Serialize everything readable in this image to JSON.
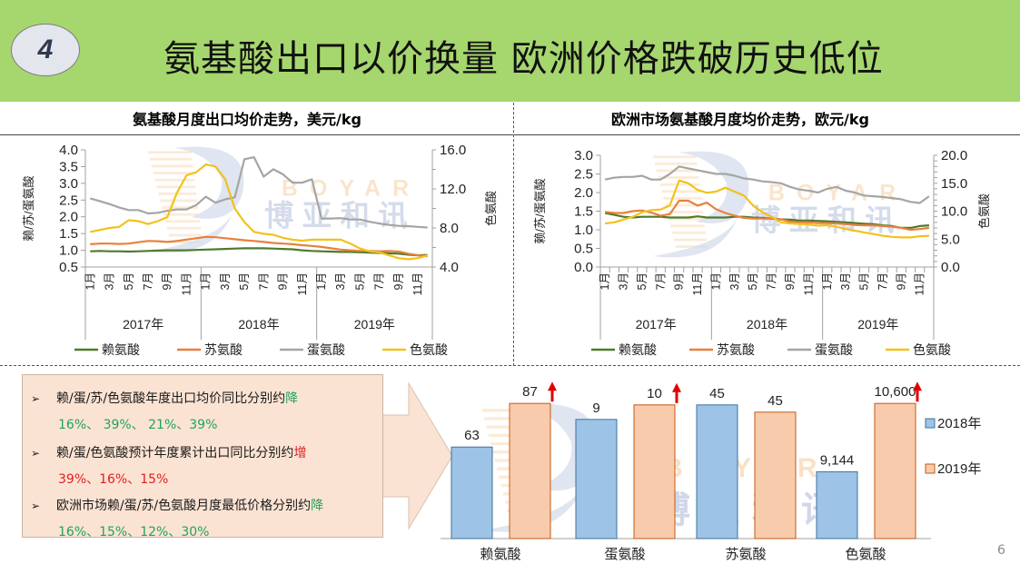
{
  "header": {
    "section_number": "4",
    "title": "氨基酸出口以价换量 欧洲价格跌破历史低位",
    "background_color": "#a6d66e"
  },
  "watermark": {
    "latin": "BOYAR",
    "chinese": "博亚和讯"
  },
  "chart_data": [
    {
      "type": "line",
      "title": "氨基酸月度出口均价走势，美元/kg",
      "ylabel": "赖/苏/蛋氨酸",
      "y2label": "色氨酸",
      "ylim": [
        0.5,
        4.0
      ],
      "yticks": [
        "4.0",
        "3.5",
        "3.0",
        "2.5",
        "2.0",
        "1.5",
        "1.0",
        "0.5"
      ],
      "y2lim": [
        4.0,
        16.0
      ],
      "y2ticks": [
        "16.0",
        "12.0",
        "8.0",
        "4.0"
      ],
      "x_month_labels": [
        "1月",
        "3月",
        "5月",
        "7月",
        "9月",
        "11月"
      ],
      "x_year_labels": [
        "2017年",
        "2018年",
        "2019年"
      ],
      "legend": "bottom",
      "series": [
        {
          "name": "赖氨酸",
          "color": "#4f7a2c",
          "axis": "left",
          "values": [
            0.97,
            0.98,
            0.97,
            0.97,
            0.96,
            0.97,
            0.98,
            0.99,
            1.0,
            1.0,
            1.0,
            1.01,
            1.02,
            1.03,
            1.04,
            1.05,
            1.06,
            1.06,
            1.06,
            1.05,
            1.04,
            1.03,
            1.0,
            0.98,
            0.97,
            0.96,
            0.95,
            0.95,
            0.94,
            0.93,
            0.92,
            0.91,
            0.9,
            0.87,
            0.85,
            0.86
          ]
        },
        {
          "name": "苏氨酸",
          "color": "#e8803c",
          "axis": "left",
          "values": [
            1.18,
            1.2,
            1.2,
            1.19,
            1.2,
            1.24,
            1.28,
            1.27,
            1.25,
            1.28,
            1.32,
            1.36,
            1.4,
            1.39,
            1.36,
            1.33,
            1.3,
            1.28,
            1.25,
            1.22,
            1.2,
            1.18,
            1.15,
            1.13,
            1.1,
            1.06,
            1.02,
            1.0,
            0.98,
            0.98,
            0.97,
            0.98,
            0.96,
            0.9,
            0.85,
            0.82
          ]
        },
        {
          "name": "蛋氨酸",
          "color": "#a5a5a5",
          "axis": "left",
          "values": [
            2.55,
            2.47,
            2.38,
            2.28,
            2.2,
            2.2,
            2.1,
            2.12,
            2.18,
            2.22,
            2.22,
            2.35,
            2.6,
            2.42,
            2.52,
            2.58,
            3.72,
            3.78,
            3.2,
            3.42,
            3.27,
            3.02,
            3.02,
            3.12,
            1.95,
            1.95,
            1.96,
            1.92,
            1.92,
            1.85,
            1.8,
            1.76,
            1.73,
            1.72,
            1.7,
            1.68
          ]
        },
        {
          "name": "色氨酸",
          "color": "#f2c21b",
          "axis": "right",
          "values": [
            7.6,
            7.8,
            8.0,
            8.1,
            8.8,
            8.7,
            8.4,
            8.7,
            9.1,
            11.6,
            13.4,
            13.7,
            14.5,
            14.3,
            13.0,
            10.0,
            8.6,
            7.6,
            7.4,
            7.3,
            7.0,
            6.8,
            6.7,
            6.8,
            6.8,
            6.8,
            6.8,
            6.4,
            5.9,
            5.6,
            5.5,
            5.2,
            4.9,
            4.8,
            4.9,
            5.2
          ]
        }
      ]
    },
    {
      "type": "line",
      "title": "欧洲市场氨基酸月度均价走势，欧元/kg",
      "ylabel": "赖/苏/蛋氨酸",
      "y2label": "色氨酸",
      "ylim": [
        0.0,
        3.0
      ],
      "yticks": [
        "3.0",
        "2.5",
        "2.0",
        "1.5",
        "1.0",
        "0.5",
        "0.0"
      ],
      "y2lim": [
        0.0,
        20.0
      ],
      "y2ticks": [
        "20.0",
        "15.0",
        "10.0",
        "5.0",
        "0.0"
      ],
      "x_month_labels": [
        "1月",
        "3月",
        "5月",
        "7月",
        "9月",
        "11月"
      ],
      "x_year_labels": [
        "2017年",
        "2018年",
        "2019年"
      ],
      "legend": "bottom",
      "series": [
        {
          "name": "赖氨酸",
          "color": "#4f7a2c",
          "axis": "left",
          "values": [
            1.45,
            1.4,
            1.35,
            1.33,
            1.35,
            1.35,
            1.35,
            1.33,
            1.33,
            1.33,
            1.36,
            1.33,
            1.33,
            1.33,
            1.35,
            1.35,
            1.33,
            1.32,
            1.3,
            1.28,
            1.27,
            1.25,
            1.25,
            1.24,
            1.23,
            1.21,
            1.2,
            1.18,
            1.16,
            1.15,
            1.12,
            1.1,
            1.05,
            1.05,
            1.1,
            1.12
          ]
        },
        {
          "name": "苏氨酸",
          "color": "#e8803c",
          "axis": "left",
          "values": [
            1.48,
            1.45,
            1.45,
            1.5,
            1.52,
            1.46,
            1.38,
            1.42,
            1.78,
            1.78,
            1.65,
            1.73,
            1.55,
            1.45,
            1.38,
            1.32,
            1.3,
            1.3,
            1.3,
            1.28,
            1.22,
            1.2,
            1.2,
            1.18,
            1.18,
            1.17,
            1.15,
            1.13,
            1.12,
            1.12,
            1.1,
            1.08,
            1.05,
            1.0,
            1.02,
            1.05
          ]
        },
        {
          "name": "蛋氨酸",
          "color": "#a5a5a5",
          "axis": "left",
          "values": [
            2.35,
            2.4,
            2.42,
            2.42,
            2.45,
            2.35,
            2.35,
            2.5,
            2.7,
            2.65,
            2.6,
            2.55,
            2.5,
            2.5,
            2.45,
            2.38,
            2.35,
            2.3,
            2.28,
            2.25,
            2.15,
            2.08,
            2.05,
            2.0,
            2.1,
            2.15,
            2.05,
            2.0,
            1.92,
            1.9,
            1.88,
            1.85,
            1.82,
            1.75,
            1.72,
            1.9
          ]
        },
        {
          "name": "色氨酸",
          "color": "#f2c21b",
          "axis": "right",
          "values": [
            7.8,
            8.0,
            8.5,
            9.0,
            9.8,
            10.2,
            10.3,
            11.0,
            15.5,
            15.0,
            13.8,
            13.3,
            13.5,
            14.2,
            13.5,
            12.8,
            11.0,
            9.8,
            9.0,
            8.0,
            7.8,
            7.7,
            7.6,
            7.4,
            7.5,
            7.2,
            6.8,
            6.5,
            6.2,
            5.9,
            5.6,
            5.4,
            5.3,
            5.3,
            5.5,
            5.6
          ]
        }
      ]
    },
    {
      "type": "bar",
      "title": "",
      "categories": [
        "赖氨酸",
        "蛋氨酸",
        "苏氨酸",
        "色氨酸"
      ],
      "series": [
        {
          "name": "2018年",
          "color": "#9dc3e6",
          "values": [
            63,
            9,
            45,
            9144
          ],
          "labels": [
            "63",
            "9",
            "45",
            "9,144"
          ]
        },
        {
          "name": "2019年",
          "color": "#f8cbad",
          "values": [
            87,
            10,
            45,
            10600
          ],
          "labels": [
            "87",
            "10",
            "45",
            "10,600"
          ]
        }
      ],
      "relative_heights_note": "each category scaled independently",
      "relative_heights": {
        "2018年": [
          0.63,
          0.82,
          0.92,
          0.46
        ],
        "2019年": [
          0.93,
          0.92,
          0.87,
          0.93
        ]
      },
      "up_arrows_on": [
        "赖氨酸",
        "蛋氨酸",
        "色氨酸"
      ],
      "legend": "right"
    }
  ],
  "notes": {
    "bullet": "➢",
    "items": [
      {
        "text": "赖/蛋/苏/色氨酸年度出口均价同比分别约",
        "direction": "降",
        "direction_color": "green",
        "values": "16%、 39%、 21%、39%"
      },
      {
        "text": "赖/蛋/色氨酸预计年度累计出口同比分别约",
        "direction": "增",
        "direction_color": "red",
        "values": "39%、16%、15%"
      },
      {
        "text": "欧洲市场赖/蛋/苏/色氨酸月度最低价格分别约",
        "direction": "降",
        "direction_color": "green",
        "values": "16%、15%、12%、30%"
      }
    ]
  },
  "footer": {
    "page_number": "6"
  }
}
